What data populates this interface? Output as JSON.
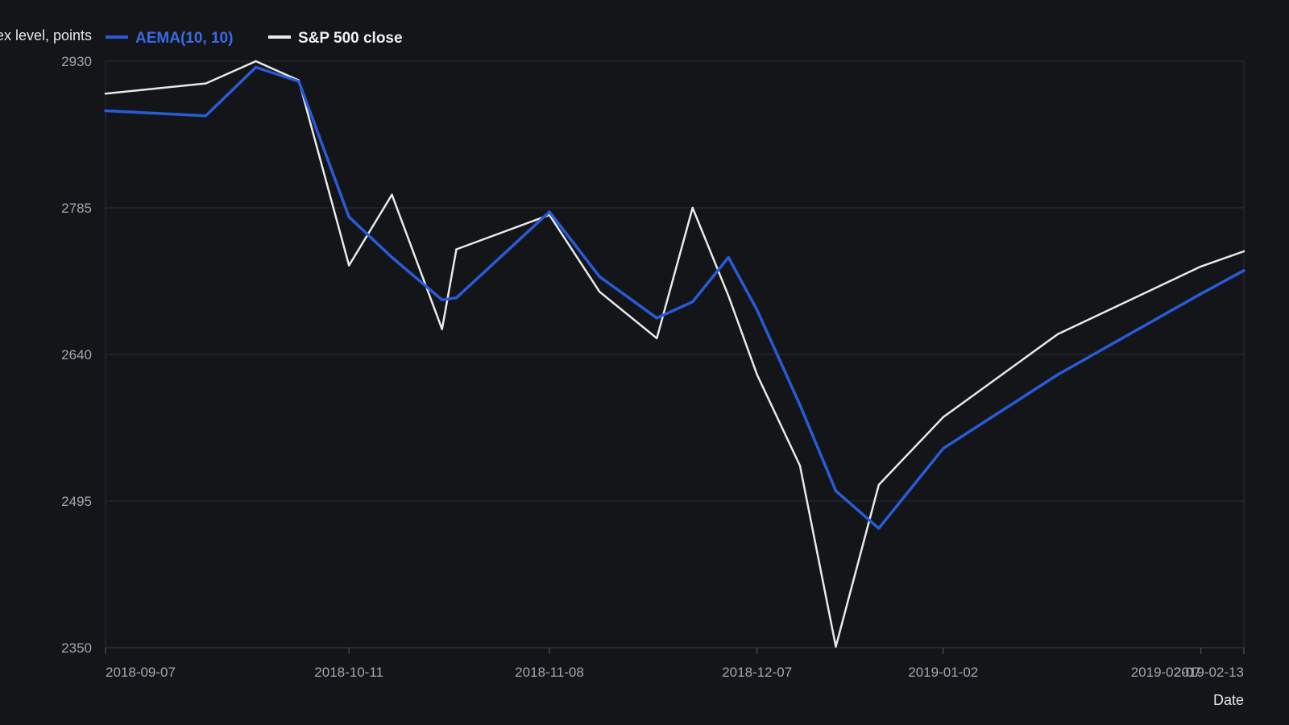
{
  "chart_data": {
    "type": "line",
    "title": "",
    "xlabel": "Date",
    "ylabel": "Index level, points",
    "ylim": [
      2350,
      2930
    ],
    "yticks": [
      2350,
      2495,
      2640,
      2785,
      2930
    ],
    "xticks": [
      "2018-09-07",
      "2018-10-11",
      "2018-11-08",
      "2018-12-07",
      "2019-01-02",
      "2019-02-07",
      "2019-02-13"
    ],
    "grid": "horizontal",
    "legend_position": "top-left",
    "x": [
      "2018-09-07",
      "2018-09-21",
      "2018-09-28",
      "2018-10-04",
      "2018-10-11",
      "2018-10-17",
      "2018-10-24",
      "2018-10-26",
      "2018-11-08",
      "2018-11-15",
      "2018-11-23",
      "2018-11-28",
      "2018-12-03",
      "2018-12-07",
      "2018-12-13",
      "2018-12-18",
      "2018-12-24",
      "2019-01-02",
      "2019-01-18",
      "2019-02-07",
      "2019-02-13"
    ],
    "series": [
      {
        "name": "AEMA(10, 10)",
        "color": "#2a5bd7",
        "values": [
          2881,
          2876,
          2924,
          2910,
          2776,
          2736,
          2694,
          2696,
          2781,
          2717,
          2676,
          2692,
          2736,
          2684,
          2590,
          2505,
          2468,
          2547,
          2620,
          2700,
          2723
        ]
      },
      {
        "name": "S&P 500 close",
        "color": "#e8e8e8",
        "values": [
          2898,
          2908,
          2930,
          2911,
          2728,
          2798,
          2665,
          2744,
          2778,
          2702,
          2656,
          2785,
          2698,
          2620,
          2530,
          2351,
          2511,
          2578,
          2660,
          2727,
          2742
        ]
      }
    ]
  }
}
